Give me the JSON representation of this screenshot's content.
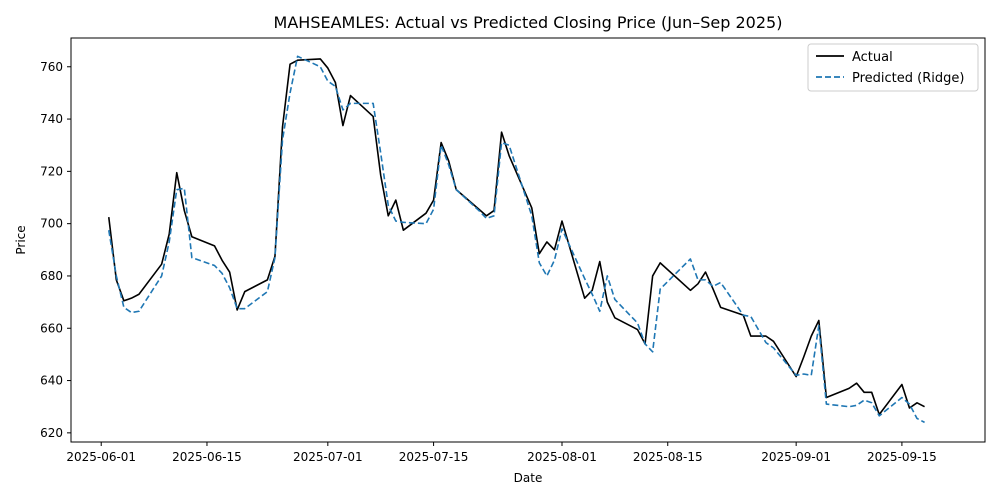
{
  "chart_data": {
    "type": "line",
    "title": "MAHSEAMLES: Actual vs Predicted Closing Price (Jun–Sep 2025)",
    "xlabel": "Date",
    "ylabel": "Price",
    "xlim": [
      "2025-05-28",
      "2025-09-26"
    ],
    "ylim": [
      616.5,
      771
    ],
    "x_ticks": [
      "2025-06-01",
      "2025-06-15",
      "2025-07-01",
      "2025-07-15",
      "2025-08-01",
      "2025-08-15",
      "2025-09-01",
      "2025-09-15"
    ],
    "y_ticks": [
      620,
      640,
      660,
      680,
      700,
      720,
      740,
      760
    ],
    "grid": false,
    "legend": "top-right",
    "x": [
      "2025-06-02",
      "2025-06-03",
      "2025-06-04",
      "2025-06-05",
      "2025-06-06",
      "2025-06-09",
      "2025-06-10",
      "2025-06-11",
      "2025-06-12",
      "2025-06-13",
      "2025-06-16",
      "2025-06-17",
      "2025-06-18",
      "2025-06-19",
      "2025-06-20",
      "2025-06-23",
      "2025-06-24",
      "2025-06-25",
      "2025-06-26",
      "2025-06-27",
      "2025-06-30",
      "2025-07-01",
      "2025-07-02",
      "2025-07-03",
      "2025-07-04",
      "2025-07-07",
      "2025-07-08",
      "2025-07-09",
      "2025-07-10",
      "2025-07-11",
      "2025-07-14",
      "2025-07-15",
      "2025-07-16",
      "2025-07-17",
      "2025-07-18",
      "2025-07-21",
      "2025-07-22",
      "2025-07-23",
      "2025-07-24",
      "2025-07-25",
      "2025-07-28",
      "2025-07-29",
      "2025-07-30",
      "2025-07-31",
      "2025-08-01",
      "2025-08-04",
      "2025-08-05",
      "2025-08-06",
      "2025-08-07",
      "2025-08-08",
      "2025-08-11",
      "2025-08-12",
      "2025-08-13",
      "2025-08-14",
      "2025-08-18",
      "2025-08-19",
      "2025-08-20",
      "2025-08-21",
      "2025-08-22",
      "2025-08-25",
      "2025-08-26",
      "2025-08-28",
      "2025-08-29",
      "2025-09-01",
      "2025-09-02",
      "2025-09-03",
      "2025-09-04",
      "2025-09-05",
      "2025-09-08",
      "2025-09-09",
      "2025-09-10",
      "2025-09-11",
      "2025-09-12",
      "2025-09-15",
      "2025-09-16",
      "2025-09-17",
      "2025-09-18"
    ],
    "series": [
      {
        "name": "Actual",
        "color": "#000000",
        "style": "solid",
        "values": [
          702.5,
          678.5,
          670.5,
          671.5,
          673,
          684.5,
          696,
          719.5,
          705,
          695,
          691.5,
          686,
          681.5,
          667,
          674,
          678.5,
          687.5,
          737,
          761,
          762.5,
          763,
          759.5,
          754,
          737.5,
          749,
          741,
          718.5,
          703,
          709,
          697.5,
          704,
          709,
          731,
          724,
          713,
          705.5,
          703,
          705,
          735,
          726,
          706,
          688.5,
          693,
          690,
          701,
          671.5,
          674.5,
          685.5,
          670,
          664,
          659.5,
          654,
          680,
          685,
          674.5,
          677,
          681.5,
          675,
          668,
          665,
          657,
          657,
          655,
          641.5,
          649,
          657,
          663,
          633.5,
          637,
          639,
          635.5,
          635.5,
          627,
          638.5,
          629.5,
          631.5,
          630
        ]
      },
      {
        "name": "Predicted (Ridge)",
        "color": "#1f77b4",
        "style": "dashed",
        "values": [
          697.5,
          680,
          668,
          666,
          666.5,
          680,
          693,
          713,
          713.5,
          687,
          684,
          681,
          675.5,
          667.5,
          667.5,
          674,
          687,
          732,
          750,
          764,
          760,
          754.5,
          752.5,
          743.5,
          746,
          746,
          727,
          707,
          701,
          700.5,
          700,
          705.5,
          730,
          722.5,
          713,
          705,
          702,
          703,
          731,
          730,
          703,
          685,
          680,
          686,
          698,
          679,
          673,
          666.5,
          680,
          671,
          662,
          654,
          651,
          675,
          686.5,
          678.5,
          678.5,
          676,
          677.5,
          665,
          664.5,
          654.5,
          652.5,
          642,
          642.5,
          642,
          661,
          631,
          630,
          630.5,
          632.5,
          631.5,
          626.5,
          633.5,
          631,
          625.5,
          624
        ]
      }
    ]
  }
}
